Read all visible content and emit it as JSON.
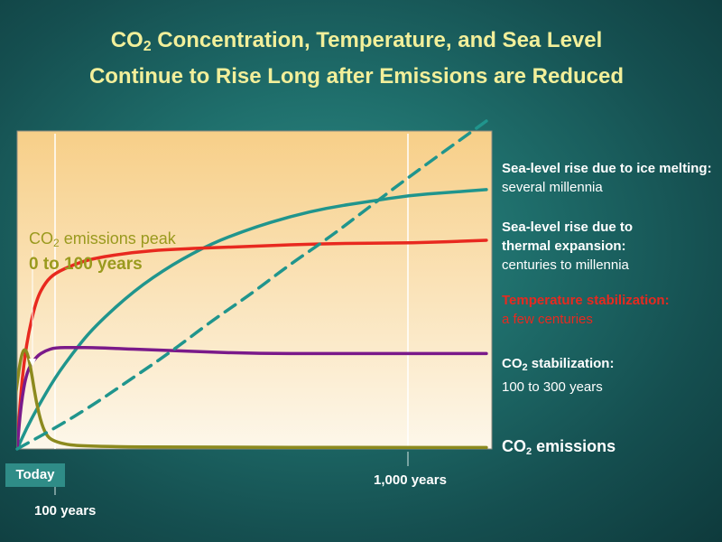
{
  "title": {
    "line1_pre": "CO",
    "line1_sub": "2",
    "line1_post": " Concentration, Temperature, and Sea Level",
    "line2": "Continue to Rise Long after Emissions are Reduced"
  },
  "peak_annotation": {
    "pre": "CO",
    "sub": "2",
    "post": " emissions peak",
    "range": "0 to 100 years"
  },
  "x_axis": {
    "origin_label": "Today",
    "tick_100": "100 years",
    "tick_1000": "1,000 years"
  },
  "series_labels": {
    "ice": {
      "bold": "Sea-level rise due to ice melting:",
      "rest": " several millennia"
    },
    "thermal": {
      "bold": "Sea-level rise due to thermal expansion:",
      "rest": "centuries to millennia"
    },
    "temperature": {
      "bold": "Temperature stabilization:",
      "rest": "a few centuries"
    },
    "co2_stab": {
      "pre": "CO",
      "sub": "2",
      "post": " stabilization:",
      "rest": "100 to 300 years"
    },
    "emissions": {
      "pre": "CO",
      "sub": "2",
      "post": " emissions"
    }
  },
  "colors": {
    "ice": "#20958d",
    "thermal": "#20958d",
    "temperature": "#e8291f",
    "co2_stab": "#7a1a8a",
    "emissions": "#8c8a1e",
    "title": "#f2ef9a",
    "plot_top": "#f7cf88",
    "plot_bottom": "#fdf7ea"
  },
  "chart_data": {
    "type": "line",
    "x_ticks": [
      "Today",
      "100 years",
      "1,000 years"
    ],
    "ylim": [
      0,
      1
    ],
    "series": [
      {
        "key": "ice",
        "dashed": true,
        "x": [
          0,
          100,
          200,
          300,
          400,
          500,
          600,
          700,
          800,
          900,
          1000,
          1200
        ],
        "y": [
          0,
          0.07,
          0.15,
          0.24,
          0.33,
          0.43,
          0.52,
          0.62,
          0.71,
          0.81,
          0.91,
          1.1
        ]
      },
      {
        "key": "thermal",
        "dashed": false,
        "x": [
          0,
          25,
          50,
          100,
          150,
          200,
          300,
          400,
          500,
          600,
          700,
          800,
          900,
          1000,
          1100,
          1200
        ],
        "y": [
          0,
          0.07,
          0.13,
          0.24,
          0.33,
          0.41,
          0.53,
          0.62,
          0.69,
          0.74,
          0.78,
          0.81,
          0.83,
          0.85,
          0.86,
          0.87
        ]
      },
      {
        "key": "temperature",
        "dashed": false,
        "x": [
          0,
          10,
          25,
          50,
          75,
          100,
          150,
          200,
          300,
          400,
          600,
          800,
          1000,
          1200
        ],
        "y": [
          0,
          0.2,
          0.36,
          0.5,
          0.56,
          0.59,
          0.62,
          0.64,
          0.66,
          0.67,
          0.68,
          0.69,
          0.69,
          0.7
        ]
      },
      {
        "key": "co2_stab",
        "dashed": false,
        "x": [
          0,
          10,
          25,
          50,
          75,
          100,
          150,
          200,
          400,
          600,
          800,
          1000,
          1200
        ],
        "y": [
          0,
          0.15,
          0.26,
          0.31,
          0.33,
          0.34,
          0.34,
          0.34,
          0.33,
          0.32,
          0.32,
          0.32,
          0.32
        ]
      },
      {
        "key": "emissions",
        "dashed": false,
        "x": [
          -5,
          0,
          10,
          20,
          30,
          40,
          50,
          65,
          80,
          100,
          130,
          170,
          250,
          400,
          1000,
          1200
        ],
        "y": [
          0.17,
          0.22,
          0.31,
          0.34,
          0.31,
          0.24,
          0.16,
          0.08,
          0.04,
          0.025,
          0.015,
          0.01,
          0.008,
          0.006,
          0.005,
          0.005
        ]
      }
    ]
  }
}
